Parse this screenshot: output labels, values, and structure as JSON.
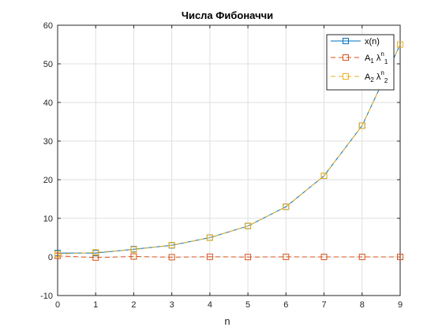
{
  "chart_data": {
    "type": "line",
    "title": "Числа Фибоначчи",
    "xlabel": "n",
    "ylabel": "",
    "xlim": [
      0,
      9
    ],
    "ylim": [
      -10,
      60
    ],
    "xticks": [
      "0",
      "1",
      "2",
      "3",
      "4",
      "5",
      "6",
      "7",
      "8",
      "9"
    ],
    "yticks": [
      "-10",
      "0",
      "10",
      "20",
      "30",
      "40",
      "50",
      "60"
    ],
    "grid": true,
    "legend_position": "top-right",
    "x": [
      0,
      1,
      2,
      3,
      4,
      5,
      6,
      7,
      8,
      9
    ],
    "series": [
      {
        "name": "x(n)",
        "values": [
          1,
          1,
          2,
          3,
          5,
          8,
          13,
          21,
          34,
          55
        ],
        "color": "#0072BD",
        "style": "solid",
        "marker": "square"
      },
      {
        "name": "A_1 λ_1^n",
        "legend": {
          "base": "A",
          "sub1": "1",
          "mid": "λ",
          "sup": "n",
          "sub2": "1"
        },
        "values": [
          0.28,
          -0.17,
          0.11,
          -0.07,
          0.04,
          -0.03,
          0.02,
          -0.01,
          0.01,
          0.0
        ],
        "color": "#D95319",
        "style": "dashed",
        "marker": "square"
      },
      {
        "name": "A_2 λ_2^n",
        "legend": {
          "base": "A",
          "sub1": "2",
          "mid": "λ",
          "sup": "n",
          "sub2": "2"
        },
        "values": [
          0.72,
          1.17,
          1.89,
          3.07,
          4.96,
          8.03,
          12.98,
          21.01,
          33.99,
          55.0
        ],
        "color": "#EDB120",
        "style": "dashed",
        "marker": "square"
      }
    ]
  }
}
